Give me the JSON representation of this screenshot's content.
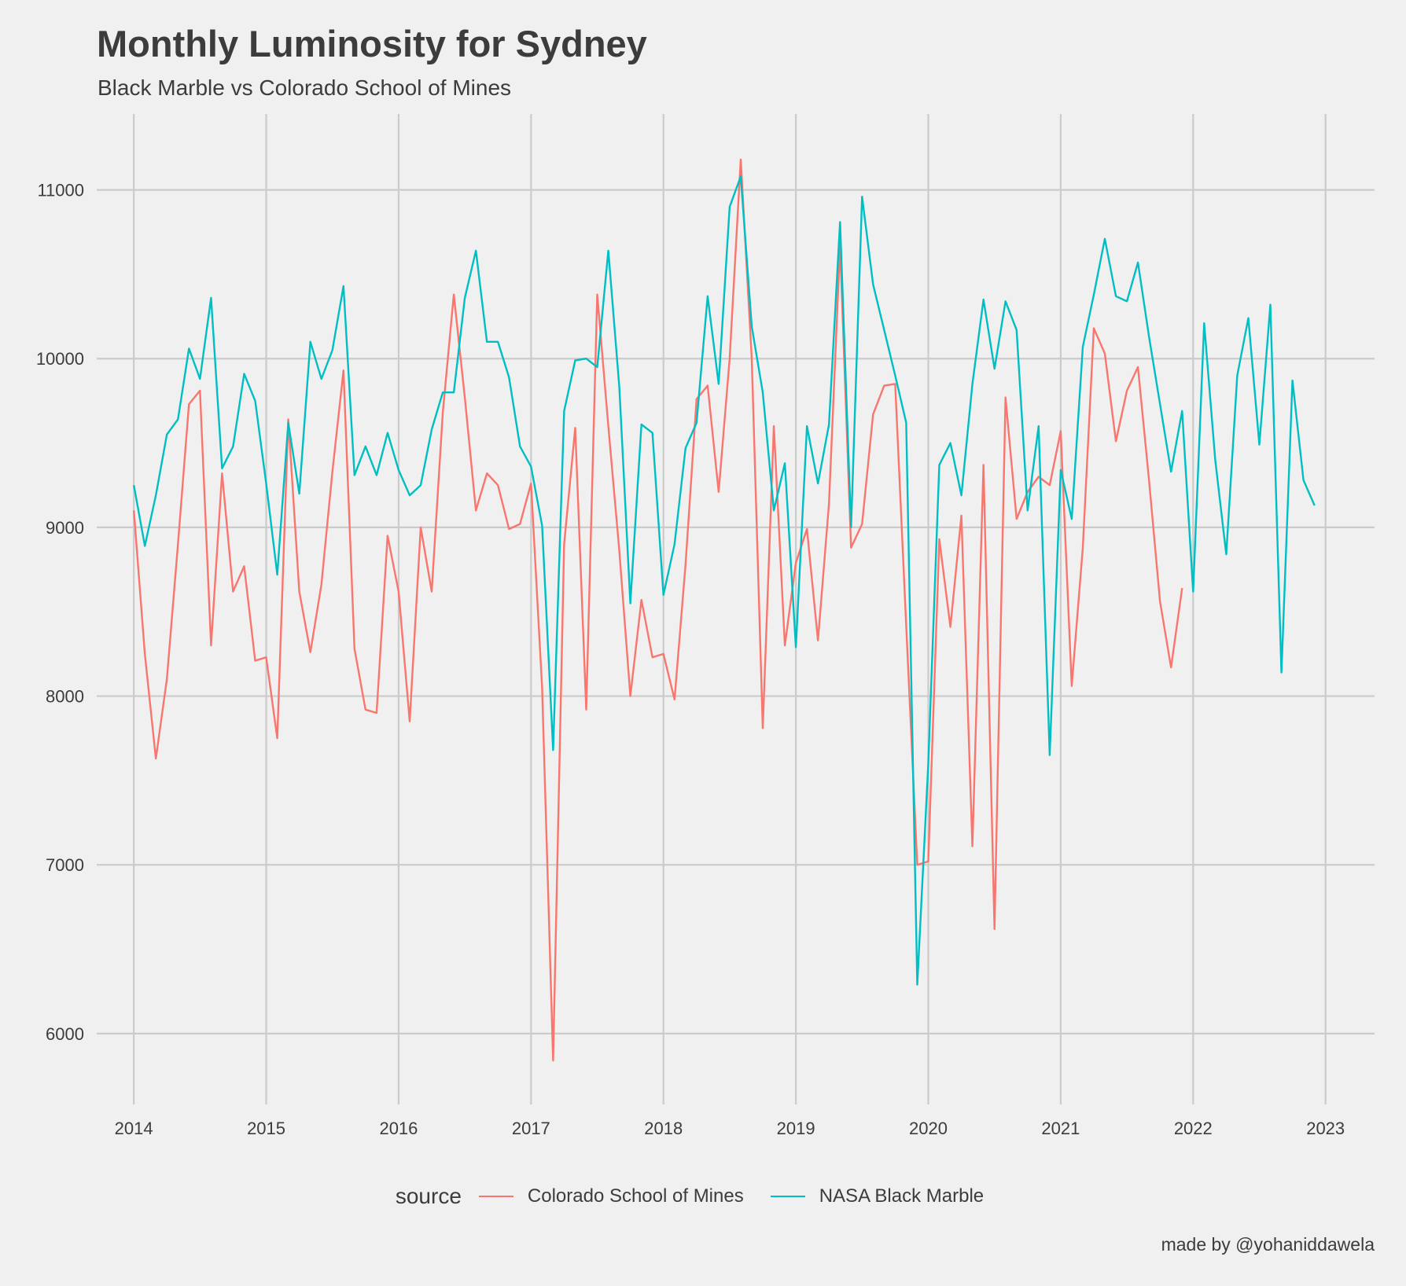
{
  "chart_data": {
    "type": "line",
    "title": "Monthly Luminosity for Sydney",
    "subtitle": "Black Marble vs Colorado School of Mines",
    "caption": "made by @yohaniddawela",
    "xlabel": "",
    "ylabel": "",
    "x_start": "2014-01",
    "xlim": [
      2013.72,
      2023.37
    ],
    "ylim": [
      5580,
      11450
    ],
    "x_ticks": [
      "2014",
      "2015",
      "2016",
      "2017",
      "2018",
      "2019",
      "2020",
      "2021",
      "2022",
      "2023"
    ],
    "y_ticks": [
      "6000",
      "7000",
      "8000",
      "9000",
      "10000",
      "11000"
    ],
    "grid": true,
    "legend": {
      "title": "source",
      "position": "bottom"
    },
    "series": [
      {
        "name": "Colorado School of Mines",
        "color": "#f8766d",
        "values": [
          9100,
          8250,
          7630,
          8100,
          8900,
          9730,
          9810,
          8300,
          9320,
          8620,
          8770,
          8210,
          8230,
          7750,
          9640,
          8620,
          8260,
          8660,
          9330,
          9930,
          8280,
          7920,
          7900,
          8950,
          8620,
          7850,
          9000,
          8620,
          9680,
          10380,
          9770,
          9100,
          9320,
          9250,
          8990,
          9020,
          9260,
          8050,
          5840,
          8900,
          9590,
          7920,
          10380,
          9600,
          8860,
          8000,
          8570,
          8230,
          8250,
          7980,
          8780,
          9760,
          9840,
          9210,
          10000,
          11180,
          10000,
          7810,
          9600,
          8300,
          8790,
          8990,
          8330,
          9140,
          10670,
          8880,
          9020,
          9670,
          9840,
          9850,
          8420,
          7000,
          7020,
          8930,
          8410,
          9070,
          7110,
          9370,
          6620,
          9770,
          9050,
          9210,
          9300,
          9250,
          9570,
          8060,
          8880,
          10180,
          10030,
          9510,
          9810,
          9950,
          9280,
          8560,
          8170,
          8640
        ]
      },
      {
        "name": "NASA Black Marble",
        "color": "#00bfc4",
        "values": [
          9250,
          8890,
          9190,
          9550,
          9640,
          10060,
          9880,
          10360,
          9350,
          9480,
          9910,
          9750,
          9260,
          8720,
          9620,
          9200,
          10100,
          9880,
          10050,
          10430,
          9310,
          9480,
          9310,
          9560,
          9340,
          9190,
          9250,
          9580,
          9800,
          9800,
          10360,
          10640,
          10100,
          10100,
          9890,
          9480,
          9360,
          9010,
          7680,
          9690,
          9990,
          10000,
          9950,
          10640,
          9830,
          8550,
          9610,
          9560,
          8600,
          8900,
          9470,
          9620,
          10370,
          9850,
          10900,
          11080,
          10190,
          9800,
          9100,
          9380,
          8290,
          9600,
          9260,
          9610,
          10810,
          9000,
          10960,
          10440,
          10170,
          9900,
          9620,
          6290,
          7600,
          9370,
          9500,
          9190,
          9850,
          10350,
          9940,
          10340,
          10170,
          9100,
          9600,
          7650,
          9340,
          9050,
          10070,
          10380,
          10710,
          10370,
          10340,
          10570,
          10130,
          9730,
          9330,
          9690,
          8620,
          10210,
          9400,
          8840,
          9900,
          10240,
          9490,
          10320,
          8140,
          9870,
          9280,
          9130
        ]
      }
    ]
  }
}
